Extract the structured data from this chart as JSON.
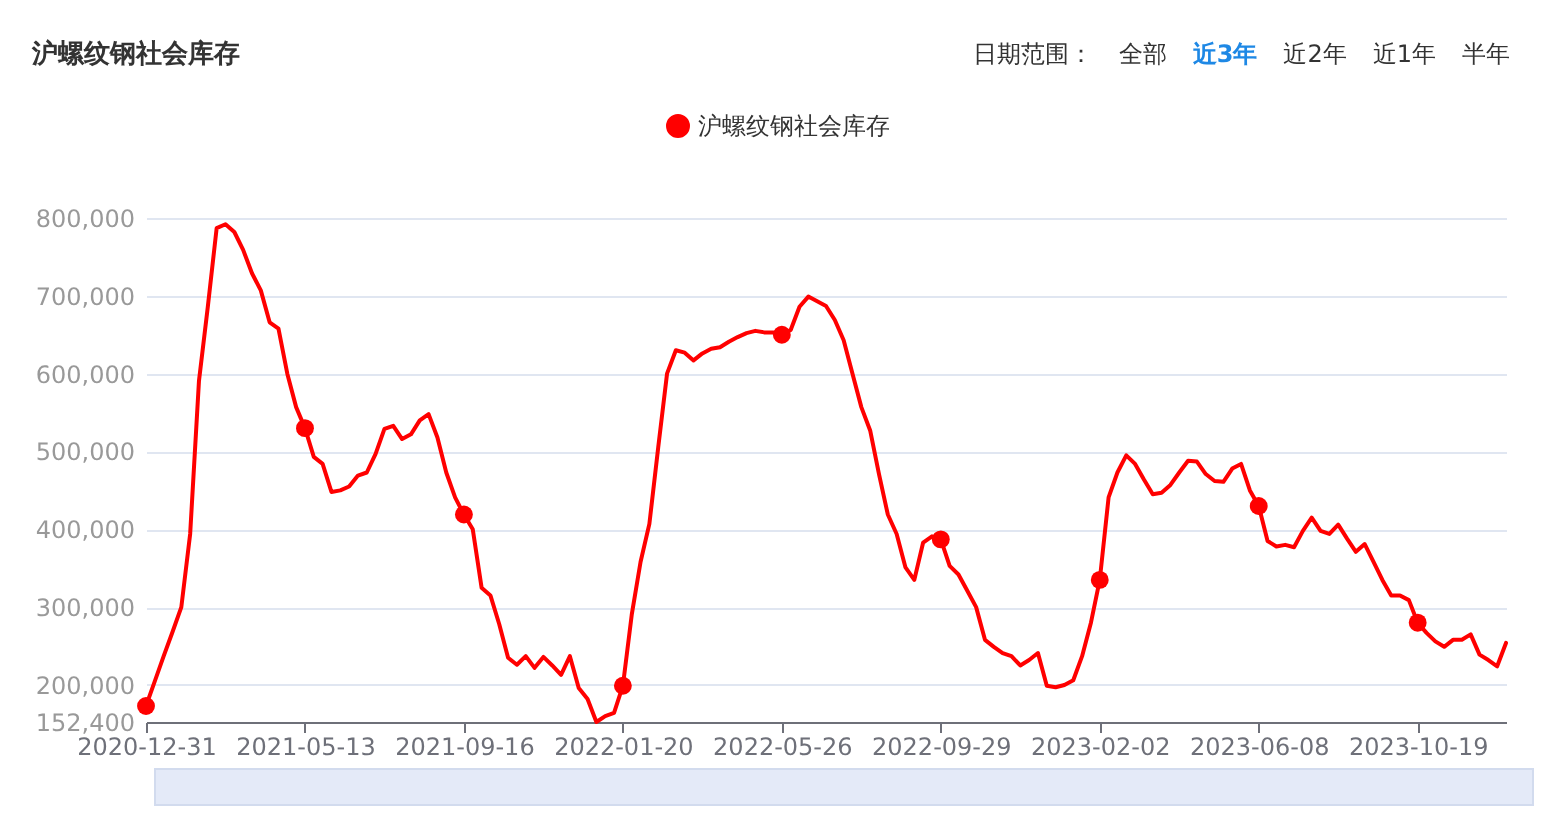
{
  "chart_data": {
    "type": "line",
    "title": "沪螺纹钢社会库存",
    "legend": "top",
    "grid": "y",
    "annotations": [
      "日期范围：",
      "全部",
      "近3年",
      "近2年",
      "近1年",
      "半年"
    ],
    "categories": [
      "2020-12-31",
      null,
      null,
      null,
      null,
      null,
      null,
      null,
      null,
      null,
      null,
      null,
      null,
      null,
      null,
      null,
      null,
      null,
      "2021-05-13",
      null,
      null,
      null,
      null,
      null,
      null,
      null,
      null,
      null,
      null,
      null,
      null,
      null,
      null,
      null,
      null,
      null,
      "2021-09-16",
      null,
      null,
      null,
      null,
      null,
      null,
      null,
      null,
      null,
      null,
      null,
      null,
      null,
      null,
      null,
      null,
      null,
      "2022-01-20",
      null,
      null,
      null,
      null,
      null,
      null,
      null,
      null,
      null,
      null,
      null,
      null,
      null,
      null,
      null,
      null,
      null,
      "2022-05-26",
      null,
      null,
      null,
      null,
      null,
      null,
      null,
      null,
      null,
      null,
      null,
      null,
      null,
      null,
      null,
      null,
      null,
      "2022-09-29",
      null,
      null,
      null,
      null,
      null,
      null,
      null,
      null,
      null,
      null,
      null,
      null,
      null,
      null,
      null,
      null,
      null,
      "2023-02-02",
      null,
      null,
      null,
      null,
      null,
      null,
      null,
      null,
      null,
      null,
      null,
      null,
      null,
      null,
      null,
      null,
      null,
      "2023-06-08",
      null,
      null,
      null,
      null,
      null,
      null,
      null,
      null,
      null,
      null,
      null,
      null,
      null,
      null,
      null,
      null,
      null,
      "2023-10-19",
      null,
      null,
      null,
      null,
      null,
      null,
      null,
      null,
      null,
      null
    ],
    "ylim": [
      152400,
      800000
    ],
    "yticks": [
      {
        "value": 152400,
        "label": "152,400"
      },
      {
        "value": 200000,
        "label": "200,000"
      },
      {
        "value": 300000,
        "label": "300,000"
      },
      {
        "value": 400000,
        "label": "400,000"
      },
      {
        "value": 500000,
        "label": "500,000"
      },
      {
        "value": 600000,
        "label": "600,000"
      },
      {
        "value": 700000,
        "label": "700,000"
      },
      {
        "value": 800000,
        "label": "800,000"
      }
    ],
    "series": [
      {
        "name": "沪螺纹钢社会库存",
        "color": "#ff0000",
        "values": [
          173000,
          205000,
          237000,
          268000,
          300000,
          394000,
          591000,
          686000,
          787000,
          792000,
          782000,
          759000,
          729000,
          707000,
          666000,
          658000,
          600000,
          557000,
          530000,
          493000,
          484000,
          448000,
          450000,
          455000,
          469000,
          473000,
          497000,
          529000,
          533000,
          516000,
          522000,
          540000,
          548000,
          518000,
          473000,
          441000,
          419000,
          400000,
          325000,
          315000,
          278000,
          235000,
          226000,
          237000,
          222000,
          236000,
          225000,
          213000,
          237000,
          196000,
          182000,
          152400,
          160000,
          164000,
          199000,
          290000,
          358000,
          407000,
          505000,
          600000,
          630000,
          627000,
          617000,
          626000,
          632000,
          634000,
          641000,
          647000,
          652000,
          655000,
          653000,
          653000,
          650000,
          656000,
          686000,
          699000,
          693000,
          687000,
          669000,
          643000,
          600000,
          557000,
          527000,
          471000,
          419000,
          394000,
          351000,
          335000,
          383000,
          391000,
          387000,
          353000,
          342000,
          321000,
          300000,
          258000,
          249000,
          241000,
          237000,
          225000,
          232000,
          241000,
          199000,
          197000,
          200000,
          206000,
          237000,
          280000,
          335000,
          441000,
          473000,
          495000,
          484000,
          464000,
          445000,
          447000,
          457000,
          473000,
          488000,
          487000,
          471000,
          462000,
          461000,
          478000,
          484000,
          450000,
          430000,
          385000,
          378000,
          380000,
          377000,
          398000,
          415000,
          398000,
          394000,
          406000,
          388000,
          371000,
          381000,
          358000,
          335000,
          315000,
          315000,
          309000,
          280000,
          267000,
          256000,
          249000,
          258000,
          258000,
          265000,
          239000,
          232000,
          224000,
          254000
        ]
      },
      {
        "type": "scatter",
        "color": "#ff0000",
        "marker": "circle",
        "values": [
          173000,
          null,
          null,
          null,
          null,
          null,
          null,
          null,
          null,
          null,
          null,
          null,
          null,
          null,
          null,
          null,
          null,
          null,
          530000,
          null,
          null,
          null,
          null,
          null,
          null,
          null,
          null,
          null,
          null,
          null,
          null,
          null,
          null,
          null,
          null,
          null,
          419000,
          null,
          null,
          null,
          null,
          null,
          null,
          null,
          null,
          null,
          null,
          null,
          null,
          null,
          null,
          null,
          null,
          null,
          199000,
          null,
          null,
          null,
          null,
          null,
          null,
          null,
          null,
          null,
          null,
          null,
          null,
          null,
          null,
          null,
          null,
          null,
          650000,
          null,
          null,
          null,
          null,
          null,
          null,
          null,
          null,
          null,
          null,
          null,
          null,
          null,
          null,
          null,
          null,
          null,
          387000,
          null,
          null,
          null,
          null,
          null,
          null,
          null,
          null,
          null,
          null,
          null,
          null,
          null,
          null,
          null,
          null,
          null,
          335000,
          null,
          null,
          null,
          null,
          null,
          null,
          null,
          null,
          null,
          null,
          null,
          null,
          null,
          null,
          null,
          null,
          null,
          430000,
          null,
          null,
          null,
          null,
          null,
          null,
          null,
          null,
          null,
          null,
          null,
          null,
          null,
          null,
          null,
          null,
          null,
          280000,
          null,
          null,
          null,
          null,
          null,
          null,
          null,
          null,
          null,
          null
        ]
      }
    ]
  }
}
